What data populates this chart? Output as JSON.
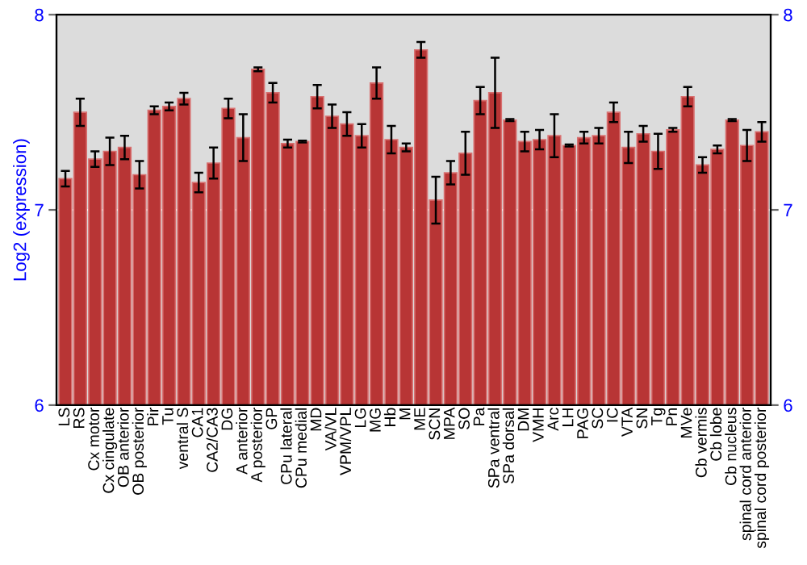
{
  "chart_data": {
    "type": "bar",
    "ylabel": "Log2 (expression)",
    "color": "#b83535",
    "categories": [
      "LS",
      "RS",
      "Cx motor",
      "Cx cingulate",
      "OB anterior",
      "OB posterior",
      "Pir",
      "Tu",
      "ventral S",
      "CA1",
      "CA2/CA3",
      "DG",
      "A anterior",
      "A posterior",
      "GP",
      "CPu lateral",
      "CPu medial",
      "MD",
      "VA/VL",
      "VPM/VPL",
      "LG",
      "MG",
      "Hb",
      "M",
      "ME",
      "SCN",
      "MPA",
      "SO",
      "Pa",
      "SPa ventral",
      "SPa dorsal",
      "DM",
      "VMH",
      "Arc",
      "LH",
      "PAG",
      "SC",
      "IC",
      "VTA",
      "SN",
      "Tg",
      "Pn",
      "MVe",
      "Cb vermis",
      "Cb lobe",
      "Cb nucleus",
      "spinal cord anterior",
      "spinal cord posterior"
    ],
    "values": [
      7.16,
      7.5,
      7.26,
      7.3,
      7.32,
      7.18,
      7.51,
      7.53,
      7.57,
      7.14,
      7.24,
      7.52,
      7.37,
      7.72,
      7.6,
      7.34,
      7.35,
      7.58,
      7.48,
      7.44,
      7.38,
      7.65,
      7.36,
      7.32,
      7.82,
      7.05,
      7.19,
      7.29,
      7.56,
      7.6,
      7.46,
      7.35,
      7.36,
      7.38,
      7.33,
      7.37,
      7.38,
      7.5,
      7.32,
      7.39,
      7.3,
      7.41,
      7.58,
      7.23,
      7.31,
      7.46,
      7.33,
      7.4
    ],
    "errors": [
      0.04,
      0.07,
      0.04,
      0.07,
      0.06,
      0.07,
      0.02,
      0.02,
      0.03,
      0.05,
      0.08,
      0.05,
      0.12,
      0.01,
      0.05,
      0.02,
      0.005,
      0.06,
      0.06,
      0.06,
      0.06,
      0.08,
      0.07,
      0.02,
      0.04,
      0.12,
      0.06,
      0.11,
      0.07,
      0.18,
      0.005,
      0.05,
      0.05,
      0.11,
      0.005,
      0.03,
      0.04,
      0.05,
      0.08,
      0.04,
      0.09,
      0.01,
      0.05,
      0.04,
      0.02,
      0.005,
      0.08,
      0.05
    ],
    "ylim": [
      6,
      8
    ],
    "yticks": [
      6,
      7,
      8
    ],
    "y2lim": [
      6,
      8
    ],
    "y2ticks": [
      6,
      7,
      8
    ],
    "grid": "y"
  }
}
